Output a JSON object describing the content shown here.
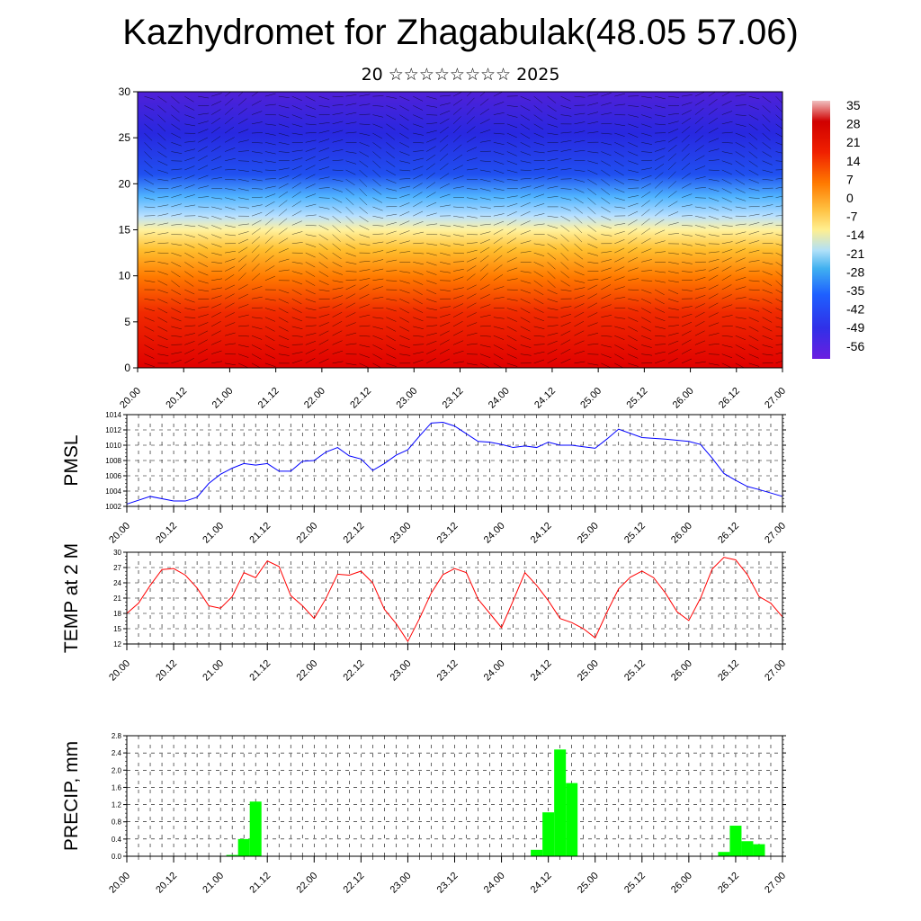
{
  "title": "Kazhydromet for Zhagabulak(48.05 57.06)",
  "subtitle": "20 ☆☆☆☆☆☆☆☆ 2025",
  "colors": {
    "pmsl_line": "#0000ff",
    "temp_line": "#ff0000",
    "precip_bar": "#00ff00"
  },
  "chart_data": [
    {
      "type": "heatmap",
      "name": "cross-section",
      "x_ticks": [
        "20.00",
        "20.12",
        "21.00",
        "21.12",
        "22.00",
        "22.12",
        "23.00",
        "23.12",
        "24.00",
        "24.12",
        "25.00",
        "25.12",
        "26.00",
        "26.12",
        "27.00"
      ],
      "y_ticks": [
        "0",
        "5",
        "10",
        "15",
        "20",
        "25",
        "30"
      ],
      "ylim": [
        0,
        30
      ],
      "colorbar": {
        "labels": [
          "35",
          "28",
          "21",
          "14",
          "7",
          "0",
          "-7",
          "-14",
          "-21",
          "-28",
          "-35",
          "-42",
          "-49",
          "-56"
        ],
        "range": [
          -63,
          39
        ]
      },
      "overlay": "wind barbs"
    },
    {
      "type": "line",
      "name": "pmsl",
      "ylabel": "PMSL",
      "y_ticks": [
        "1002",
        "1004",
        "1006",
        "1008",
        "1010",
        "1012",
        "1014"
      ],
      "ylim": [
        1002,
        1014
      ],
      "x_ticks": [
        "20.00",
        "20.12",
        "21.00",
        "21.12",
        "22.00",
        "22.12",
        "23.00",
        "23.12",
        "24.00",
        "24.12",
        "25.00",
        "25.12",
        "26.00",
        "26.12",
        "27.00"
      ],
      "x_range": [
        0,
        56
      ],
      "x": [
        0,
        2,
        4,
        5,
        6,
        7,
        8,
        9,
        10,
        11,
        12,
        13,
        14,
        15,
        16,
        17,
        18,
        19,
        20,
        21,
        22,
        23,
        24,
        25,
        26,
        27,
        28,
        30,
        31,
        32,
        33,
        34,
        35,
        36,
        37,
        38,
        39,
        40,
        41,
        42,
        44,
        46,
        48,
        49,
        50,
        51,
        52,
        53,
        54,
        56
      ],
      "values": [
        1002.3,
        1003.3,
        1002.7,
        1002.7,
        1003.2,
        1005.0,
        1006.2,
        1007.0,
        1007.6,
        1007.4,
        1007.6,
        1006.6,
        1006.6,
        1007.9,
        1008.0,
        1009.1,
        1009.7,
        1008.6,
        1008.2,
        1006.7,
        1007.6,
        1008.7,
        1009.4,
        1011.2,
        1012.9,
        1013.0,
        1012.5,
        1010.5,
        1010.4,
        1010.1,
        1009.7,
        1009.9,
        1009.7,
        1010.4,
        1010.0,
        1010.0,
        1009.8,
        1009.6,
        1010.8,
        1012.1,
        1011.0,
        1010.8,
        1010.5,
        1010.1,
        1008.3,
        1006.3,
        1005.4,
        1004.6,
        1004.2,
        1003.3
      ],
      "grid": true
    },
    {
      "type": "line",
      "name": "temp",
      "ylabel": "TEMP at 2 M",
      "y_ticks": [
        "12",
        "15",
        "18",
        "21",
        "24",
        "27",
        "30"
      ],
      "ylim": [
        12,
        30
      ],
      "x_ticks": [
        "20.00",
        "20.12",
        "21.00",
        "21.12",
        "22.00",
        "22.12",
        "23.00",
        "23.12",
        "24.00",
        "24.12",
        "25.00",
        "25.12",
        "26.00",
        "26.12",
        "27.00"
      ],
      "x_range": [
        0,
        56
      ],
      "x": [
        0,
        1,
        2,
        3,
        4,
        5,
        6,
        7,
        8,
        9,
        10,
        11,
        12,
        13,
        14,
        15,
        16,
        17,
        18,
        19,
        20,
        21,
        22,
        23,
        24,
        25,
        26,
        27,
        28,
        29,
        30,
        31,
        32,
        33,
        34,
        35,
        36,
        37,
        38,
        39,
        40,
        41,
        42,
        43,
        44,
        45,
        46,
        47,
        48,
        49,
        50,
        51,
        52,
        53,
        54,
        55,
        56
      ],
      "values": [
        18.0,
        20.0,
        23.5,
        26.6,
        26.8,
        25.5,
        23.0,
        19.5,
        19.0,
        21.3,
        26.0,
        25.0,
        28.3,
        27.2,
        21.5,
        19.5,
        17.0,
        20.9,
        25.7,
        25.5,
        26.3,
        24.0,
        18.8,
        16.0,
        12.5,
        17.0,
        22.0,
        25.6,
        26.8,
        26.0,
        20.8,
        18.0,
        15.2,
        20.5,
        26.0,
        23.5,
        20.5,
        17.0,
        16.2,
        15.0,
        13.2,
        18.2,
        22.8,
        25.1,
        26.3,
        25.0,
        22.0,
        18.3,
        16.6,
        21.0,
        26.7,
        29.0,
        28.5,
        25.6,
        21.3,
        20.0,
        17.3
      ],
      "grid": true
    },
    {
      "type": "bar",
      "name": "precip",
      "ylabel": "PRECIP, mm",
      "y_ticks": [
        "0.0",
        "0.4",
        "0.8",
        "1.2",
        "1.6",
        "2.0",
        "2.4",
        "2.8"
      ],
      "ylim": [
        0,
        2.8
      ],
      "x_ticks": [
        "20.00",
        "20.12",
        "21.00",
        "21.12",
        "22.00",
        "22.12",
        "23.00",
        "23.12",
        "24.00",
        "24.12",
        "25.00",
        "25.12",
        "26.00",
        "26.12",
        "27.00"
      ],
      "x_range": [
        0,
        56
      ],
      "bar_x": [
        9,
        10,
        11,
        35,
        36,
        37,
        38,
        51,
        52,
        53,
        54
      ],
      "values": [
        0.03,
        0.4,
        1.27,
        0.15,
        1.02,
        2.48,
        1.7,
        0.1,
        0.71,
        0.35,
        0.28
      ],
      "grid": true
    }
  ]
}
